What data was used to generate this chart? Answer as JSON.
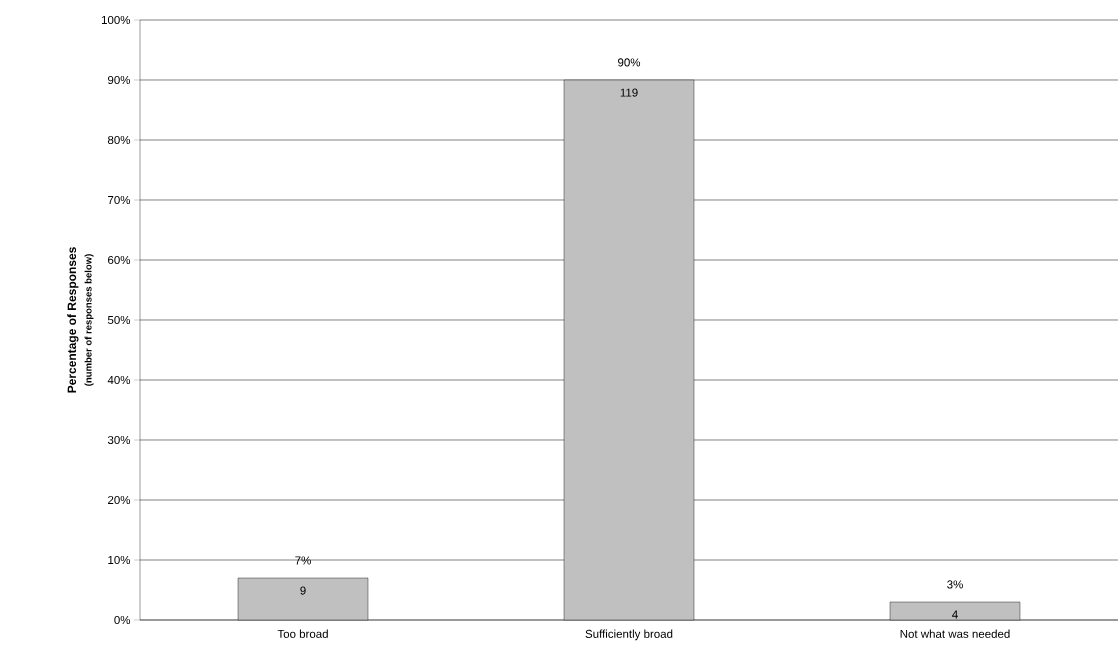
{
  "chart_data": {
    "type": "bar",
    "ylabel": "Percentage of Responses",
    "categories": [
      "Too broad",
      "Sufficiently broad",
      "Not what was needed"
    ],
    "values": [
      7,
      90,
      3
    ],
    "value_labels": [
      "7%",
      "90%",
      "3%"
    ],
    "color": "#c0c0c0",
    "ylim": [
      0,
      100
    ],
    "yticks": [
      {
        "value": 0,
        "label": "0%"
      },
      {
        "value": 10,
        "label": "10%"
      },
      {
        "value": 20,
        "label": "20%"
      },
      {
        "value": 30,
        "label": "30%"
      },
      {
        "value": 40,
        "label": "40%"
      },
      {
        "value": 50,
        "label": "50%"
      },
      {
        "value": 60,
        "label": "60%"
      },
      {
        "value": 70,
        "label": "70%"
      },
      {
        "value": 80,
        "label": "80%"
      },
      {
        "value": 90,
        "label": "90%"
      },
      {
        "value": 100,
        "label": "100%"
      }
    ],
    "grid": "y",
    "annotations": [
      "(number of responses below)",
      "9",
      "119",
      "4"
    ]
  }
}
